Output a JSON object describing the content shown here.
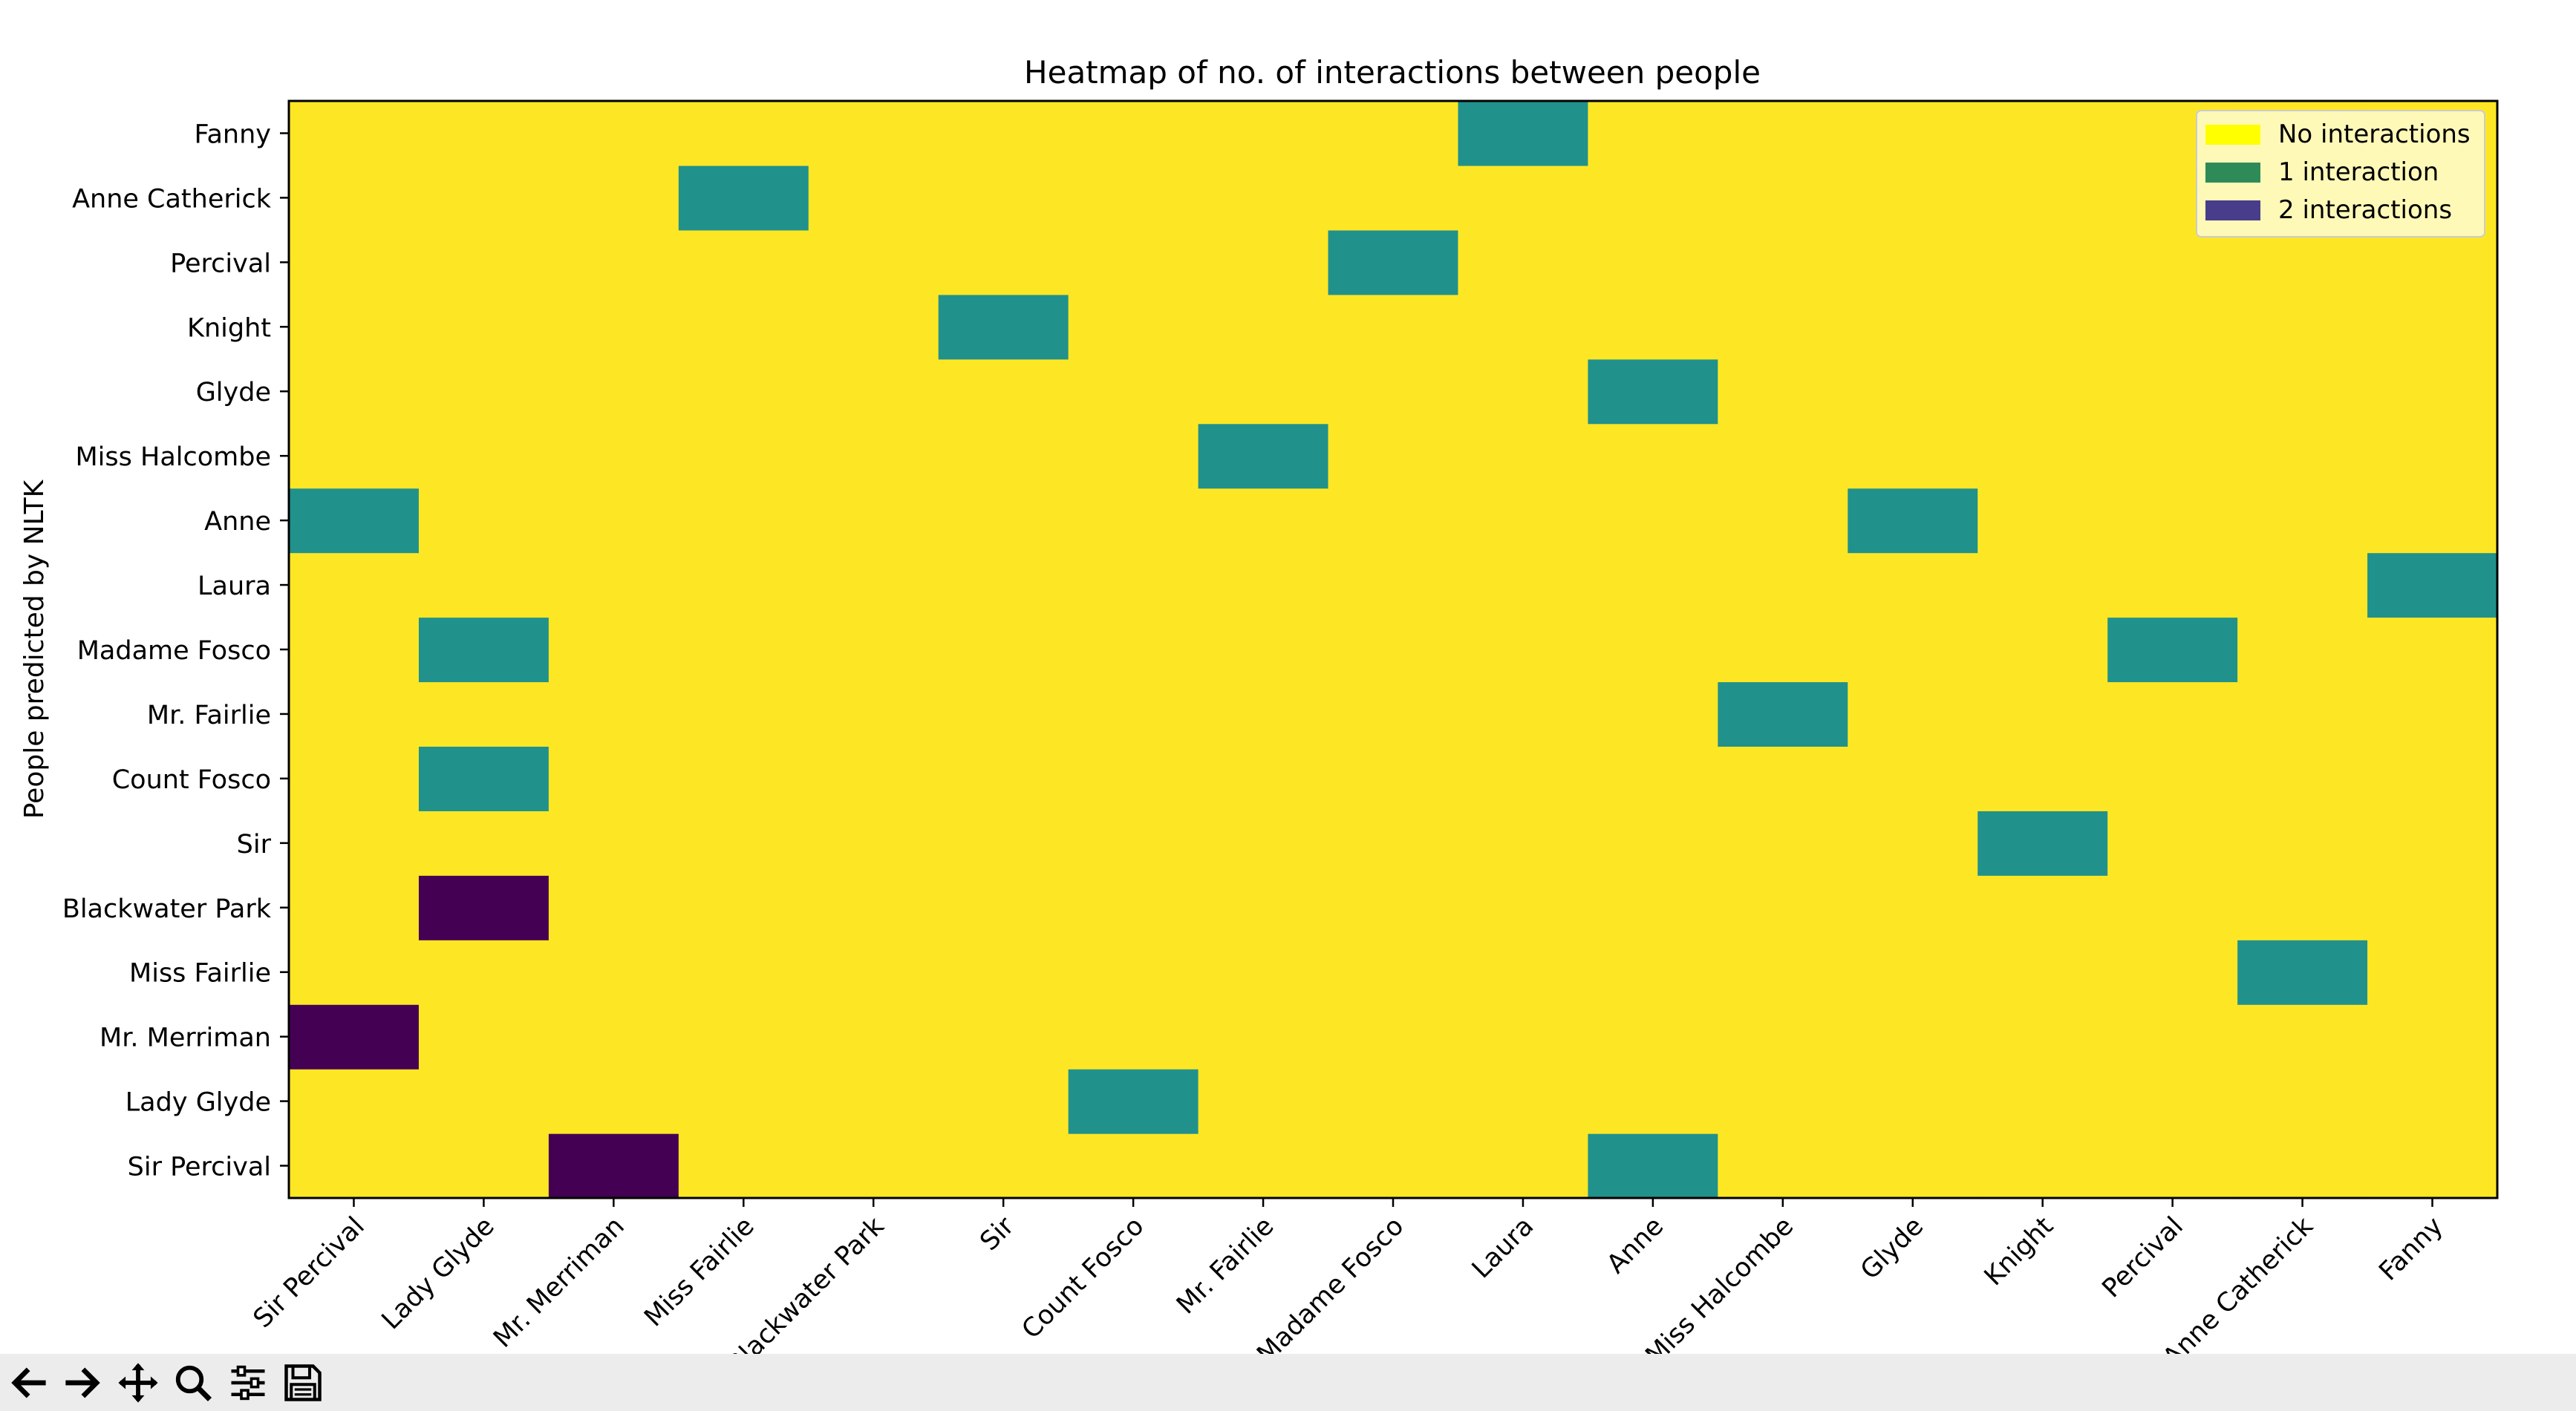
{
  "chart_data": {
    "type": "heatmap",
    "title": "Heatmap of no. of interactions between people",
    "ylabel": "People predicted by NLTK",
    "xlabel": "",
    "x_categories": [
      "Sir Percival",
      "Lady Glyde",
      "Mr. Merriman",
      "Miss Fairlie",
      "Blackwater Park",
      "Sir",
      "Count Fosco",
      "Mr. Fairlie",
      "Madame Fosco",
      "Laura",
      "Anne",
      "Miss Halcombe",
      "Glyde",
      "Knight",
      "Percival",
      "Anne Catherick",
      "Fanny"
    ],
    "y_categories": [
      "Sir Percival",
      "Lady Glyde",
      "Mr. Merriman",
      "Miss Fairlie",
      "Blackwater Park",
      "Sir",
      "Count Fosco",
      "Mr. Fairlie",
      "Madame Fosco",
      "Laura",
      "Anne",
      "Miss Halcombe",
      "Glyde",
      "Knight",
      "Percival",
      "Anne Catherick",
      "Fanny"
    ],
    "y_order": "bottom-to-top",
    "values": [
      [
        0,
        0,
        2,
        0,
        0,
        0,
        0,
        0,
        0,
        0,
        1,
        0,
        0,
        0,
        0,
        0,
        0
      ],
      [
        0,
        0,
        0,
        0,
        0,
        0,
        1,
        0,
        0,
        0,
        0,
        0,
        0,
        0,
        0,
        0,
        0
      ],
      [
        2,
        0,
        0,
        0,
        0,
        0,
        0,
        0,
        0,
        0,
        0,
        0,
        0,
        0,
        0,
        0,
        0
      ],
      [
        0,
        0,
        0,
        0,
        0,
        0,
        0,
        0,
        0,
        0,
        0,
        0,
        0,
        0,
        0,
        1,
        0
      ],
      [
        0,
        2,
        0,
        0,
        0,
        0,
        0,
        0,
        0,
        0,
        0,
        0,
        0,
        0,
        0,
        0,
        0
      ],
      [
        0,
        0,
        0,
        0,
        0,
        0,
        0,
        0,
        0,
        0,
        0,
        0,
        0,
        1,
        0,
        0,
        0
      ],
      [
        0,
        1,
        0,
        0,
        0,
        0,
        0,
        0,
        0,
        0,
        0,
        0,
        0,
        0,
        0,
        0,
        0
      ],
      [
        0,
        0,
        0,
        0,
        0,
        0,
        0,
        0,
        0,
        0,
        0,
        1,
        0,
        0,
        0,
        0,
        0
      ],
      [
        0,
        1,
        0,
        0,
        0,
        0,
        0,
        0,
        0,
        0,
        0,
        0,
        0,
        0,
        1,
        0,
        0
      ],
      [
        0,
        0,
        0,
        0,
        0,
        0,
        0,
        0,
        0,
        0,
        0,
        0,
        0,
        0,
        0,
        0,
        1
      ],
      [
        1,
        0,
        0,
        0,
        0,
        0,
        0,
        0,
        0,
        0,
        0,
        0,
        1,
        0,
        0,
        0,
        0
      ],
      [
        0,
        0,
        0,
        0,
        0,
        0,
        0,
        1,
        0,
        0,
        0,
        0,
        0,
        0,
        0,
        0,
        0
      ],
      [
        0,
        0,
        0,
        0,
        0,
        0,
        0,
        0,
        0,
        0,
        1,
        0,
        0,
        0,
        0,
        0,
        0
      ],
      [
        0,
        0,
        0,
        0,
        0,
        1,
        0,
        0,
        0,
        0,
        0,
        0,
        0,
        0,
        0,
        0,
        0
      ],
      [
        0,
        0,
        0,
        0,
        0,
        0,
        0,
        0,
        1,
        0,
        0,
        0,
        0,
        0,
        0,
        0,
        0
      ],
      [
        0,
        0,
        0,
        1,
        0,
        0,
        0,
        0,
        0,
        0,
        0,
        0,
        0,
        0,
        0,
        0,
        0
      ],
      [
        0,
        0,
        0,
        0,
        0,
        0,
        0,
        0,
        0,
        1,
        0,
        0,
        0,
        0,
        0,
        0,
        0
      ]
    ],
    "value_colors": {
      "0": "#fde725",
      "1": "#21918c",
      "2": "#440154"
    },
    "legend": {
      "placement": "top-right",
      "entries": [
        {
          "label": "No interactions",
          "color": "#ffff00"
        },
        {
          "label": "1 interaction",
          "color": "#2e8b57"
        },
        {
          "label": "2 interactions",
          "color": "#483d8b"
        }
      ]
    },
    "grid": false
  },
  "toolbar": {
    "buttons": [
      {
        "name": "back-button",
        "icon": "arrow-left-icon"
      },
      {
        "name": "forward-button",
        "icon": "arrow-right-icon"
      },
      {
        "name": "pan-button",
        "icon": "move-icon"
      },
      {
        "name": "zoom-button",
        "icon": "magnifier-icon"
      },
      {
        "name": "configure-subplots-button",
        "icon": "sliders-icon"
      },
      {
        "name": "save-button",
        "icon": "floppy-disk-icon"
      }
    ]
  }
}
